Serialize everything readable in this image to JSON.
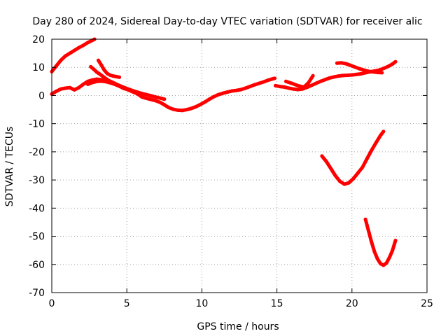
{
  "chart_data": {
    "type": "scatter",
    "title": "Day 280 of 2024, Sidereal Day-to-day VTEC variation (SDTVAR) for receiver alic",
    "xlabel": "GPS time / hours",
    "ylabel": "SDTVAR / TECUs",
    "xlim": [
      0,
      25
    ],
    "ylim": [
      -70,
      20
    ],
    "x_ticks": [
      0,
      5,
      10,
      15,
      20,
      25
    ],
    "y_ticks": [
      20,
      10,
      0,
      -10,
      -20,
      -30,
      -40,
      -50,
      -60,
      -70
    ],
    "grid": true,
    "color": "#ff0000",
    "series": [
      {
        "x": [
          0.0,
          0.3,
          0.6,
          0.9,
          1.2,
          1.5,
          1.8,
          2.1,
          2.4,
          2.7,
          2.85
        ],
        "y": [
          8.5,
          10.5,
          12.5,
          14,
          15,
          16,
          17,
          17.8,
          18.8,
          19.6,
          20
        ]
      },
      {
        "x": [
          0.0,
          0.3,
          0.6,
          0.9,
          1.2,
          1.5,
          1.8,
          2.1,
          2.4,
          2.7,
          3.0,
          3.3,
          3.6,
          3.9,
          4.2,
          4.5,
          4.8,
          5.1,
          5.4,
          5.7,
          6.0,
          6.3,
          6.6,
          6.9,
          7.2,
          7.5,
          7.8,
          8.1,
          8.4,
          8.7,
          9.0,
          9.3,
          9.6,
          9.9,
          10.2,
          10.5,
          10.8,
          11.1,
          11.4,
          11.7,
          12.0,
          12.3,
          12.6,
          12.9,
          13.2,
          13.5,
          13.8,
          14.1,
          14.4,
          14.7,
          14.85
        ],
        "y": [
          0.5,
          1.5,
          2.3,
          2.6,
          2.8,
          2.0,
          2.8,
          4.0,
          5.0,
          5.5,
          5.8,
          5.6,
          5.0,
          4.5,
          4.0,
          3.3,
          2.5,
          2.0,
          1.3,
          0.6,
          -0.5,
          -1.0,
          -1.4,
          -1.8,
          -2.4,
          -3.3,
          -4.3,
          -4.9,
          -5.2,
          -5.3,
          -5.0,
          -4.6,
          -4.0,
          -3.2,
          -2.3,
          -1.3,
          -0.4,
          0.3,
          0.8,
          1.2,
          1.6,
          1.8,
          2.1,
          2.6,
          3.2,
          3.8,
          4.3,
          4.8,
          5.4,
          5.9,
          6.1
        ]
      },
      {
        "x": [
          2.4,
          2.7,
          3.0,
          3.3,
          3.6,
          3.9,
          4.2,
          4.5,
          4.8,
          5.1,
          5.4,
          5.7,
          6.0,
          6.3,
          6.6,
          6.9,
          7.2,
          7.5
        ],
        "y": [
          4.0,
          4.6,
          5.0,
          5.1,
          4.9,
          4.5,
          4.0,
          3.5,
          2.9,
          2.3,
          1.7,
          1.2,
          0.7,
          0.3,
          -0.1,
          -0.5,
          -0.9,
          -1.3
        ]
      },
      {
        "x": [
          2.6,
          2.8,
          3.0,
          3.2,
          3.4,
          3.6,
          3.8,
          4.0,
          4.2,
          4.4,
          4.6,
          4.8,
          5.0,
          5.2
        ],
        "y": [
          10.2,
          9.3,
          8.3,
          7.6,
          6.8,
          6.0,
          5.3,
          4.8,
          4.3,
          3.8,
          3.3,
          2.8,
          2.3,
          1.8
        ]
      },
      {
        "x": [
          3.1,
          3.3,
          3.5,
          3.7,
          3.9,
          4.1,
          4.3,
          4.5
        ],
        "y": [
          12.5,
          10.8,
          9.0,
          7.8,
          7.2,
          6.9,
          6.7,
          6.5
        ]
      },
      {
        "x": [
          14.9,
          15.2,
          15.5,
          15.8,
          16.1,
          16.4,
          16.7,
          17.0,
          17.3,
          17.6,
          17.9,
          18.2,
          18.5,
          18.8,
          19.1,
          19.4,
          19.7,
          20.0,
          20.3,
          20.6,
          20.9,
          21.2,
          21.5,
          21.8,
          22.1,
          22.4,
          22.7,
          22.9
        ],
        "y": [
          3.5,
          3.2,
          3.0,
          2.6,
          2.3,
          2.1,
          2.3,
          2.9,
          3.6,
          4.3,
          5.0,
          5.6,
          6.2,
          6.6,
          6.9,
          7.1,
          7.2,
          7.3,
          7.5,
          7.7,
          8.1,
          8.4,
          8.7,
          9.0,
          9.6,
          10.3,
          11.2,
          12.0
        ]
      },
      {
        "x": [
          15.6,
          16.0,
          16.4,
          16.8,
          17.1,
          17.4
        ],
        "y": [
          5.0,
          4.3,
          3.5,
          3.0,
          4.5,
          7.0
        ]
      },
      {
        "x": [
          19.0,
          19.3,
          19.6,
          19.9,
          20.2,
          20.5,
          20.8,
          21.1,
          21.4,
          21.7,
          22.0
        ],
        "y": [
          11.5,
          11.6,
          11.3,
          10.7,
          10.1,
          9.5,
          9.0,
          8.6,
          8.4,
          8.2,
          8.1
        ]
      },
      {
        "x": [
          18.0,
          18.3,
          18.6,
          18.9,
          19.2,
          19.5,
          19.8,
          20.1,
          20.4,
          20.7,
          21.0,
          21.3,
          21.6,
          21.9,
          22.1
        ],
        "y": [
          -21.5,
          -23.5,
          -26.0,
          -28.5,
          -30.5,
          -31.5,
          -31.0,
          -29.5,
          -27.5,
          -25.5,
          -22.5,
          -19.5,
          -16.8,
          -14.2,
          -12.8
        ]
      },
      {
        "x": [
          20.9,
          21.1,
          21.3,
          21.5,
          21.7,
          21.9,
          22.1,
          22.3,
          22.5,
          22.7,
          22.9
        ],
        "y": [
          -44.0,
          -48.0,
          -52.0,
          -55.5,
          -58.0,
          -59.7,
          -60.3,
          -59.5,
          -57.5,
          -55.0,
          -51.5
        ]
      }
    ]
  }
}
